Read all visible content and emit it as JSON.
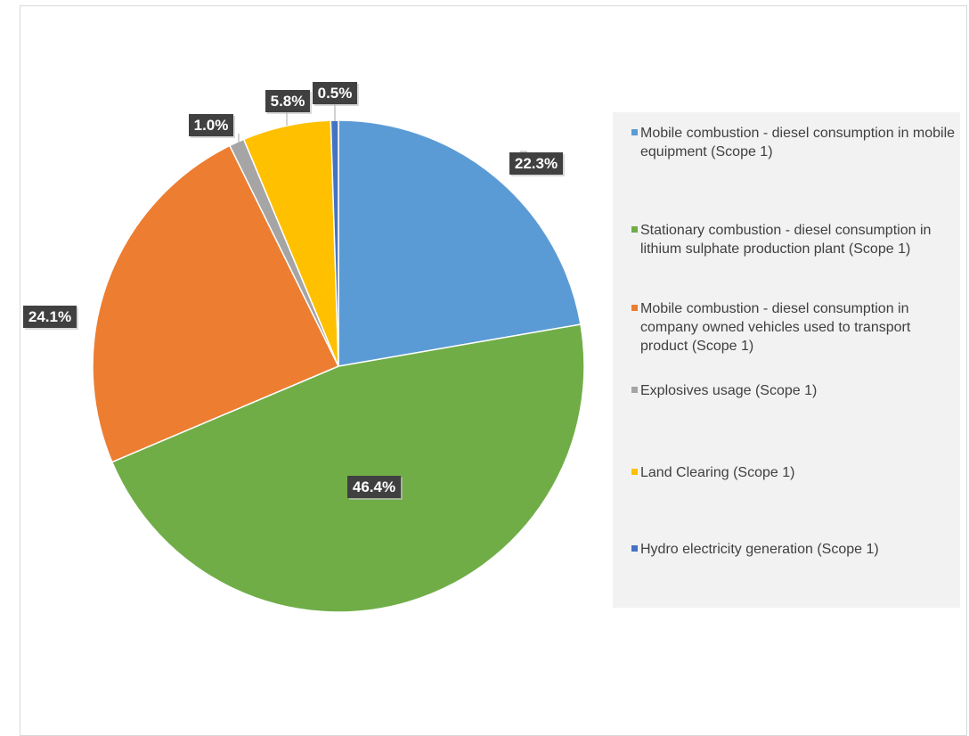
{
  "chart_data": {
    "type": "pie",
    "title": "",
    "slices": [
      {
        "label": "Mobile combustion - diesel consumption in mobile equipment  (Scope 1)",
        "value": 22.3,
        "display": "22.3%",
        "color": "#5b9bd5"
      },
      {
        "label": "Stationary combustion - diesel consumption in lithium sulphate production plant (Scope 1)",
        "value": 46.4,
        "display": "46.4%",
        "color": "#70ad47"
      },
      {
        "label": "Mobile combustion - diesel consumption in company owned vehicles used to transport product (Scope 1)",
        "value": 24.1,
        "display": "24.1%",
        "color": "#ed7d31"
      },
      {
        "label": "Explosives usage (Scope 1)",
        "value": 1.0,
        "display": "1.0%",
        "color": "#a5a5a5"
      },
      {
        "label": "Land Clearing (Scope 1)",
        "value": 5.8,
        "display": "5.8%",
        "color": "#ffc000"
      },
      {
        "label": "Hydro electricity generation (Scope 1)",
        "value": 0.5,
        "display": "0.5%",
        "color": "#4472c4"
      }
    ],
    "start_angle": "12 o'clock",
    "direction": "clockwise",
    "legend_placement": "right",
    "label_box_color": "#404040",
    "label_text_color": "#ffffff"
  },
  "legend": {
    "items": [
      {
        "label": "Mobile combustion - diesel consumption in mobile equipment  (Scope 1)",
        "color": "#5b9bd5"
      },
      {
        "label": "Stationary combustion - diesel consumption in lithium sulphate production plant (Scope 1)",
        "color": "#70ad47"
      },
      {
        "label": "Mobile combustion - diesel consumption in company owned vehicles used to transport product (Scope 1)",
        "color": "#ed7d31"
      },
      {
        "label": "Explosives usage (Scope 1)",
        "color": "#a5a5a5"
      },
      {
        "label": "Land Clearing (Scope 1)",
        "color": "#ffc000"
      },
      {
        "label": "Hydro electricity generation (Scope 1)",
        "color": "#4472c4"
      }
    ]
  }
}
